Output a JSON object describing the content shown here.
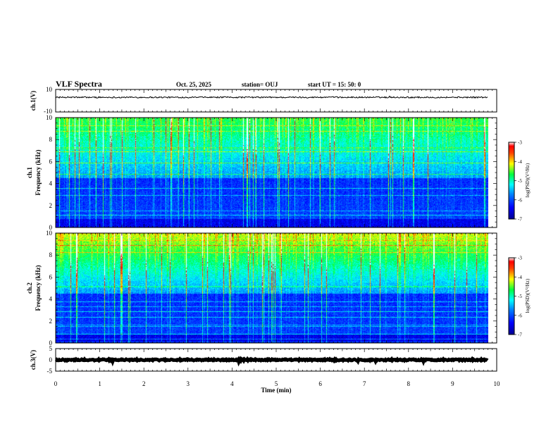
{
  "header": {
    "title": "VLF Spectra",
    "date": "Oct. 25, 2025",
    "station": "station= OUJ",
    "start": "start  UT =   15: 50: 0"
  },
  "chart_data": [
    {
      "type": "line",
      "panel": "ch1-waveform",
      "ylabel": "ch.1(V)",
      "ylim": [
        -10,
        10
      ],
      "yticks": [
        "10",
        "-10"
      ],
      "xlim": [
        0,
        10
      ],
      "x_data_range": [
        0,
        9.8
      ],
      "baseline": 3,
      "noise_amplitude": 0.6,
      "color": "#000000"
    },
    {
      "type": "heatmap",
      "panel": "ch1-spectrogram",
      "ylabel_line1": "ch.1",
      "ylabel_line2": "Frequency (kHz)",
      "ylim": [
        0,
        10
      ],
      "yticks": [
        "0",
        "2",
        "4",
        "6",
        "8",
        "10"
      ],
      "xlim": [
        0,
        10
      ],
      "x_data_range": [
        0,
        9.8
      ],
      "colorbar": {
        "label": "log(PSD)(V²/Hz)",
        "range": [
          -7,
          -3
        ],
        "ticks": [
          "-3",
          "-4",
          "-5",
          "-6",
          "-7"
        ]
      }
    },
    {
      "type": "heatmap",
      "panel": "ch2-spectrogram",
      "ylabel_line1": "ch.2",
      "ylabel_line2": "Frequency (kHz)",
      "ylim": [
        0,
        10
      ],
      "yticks": [
        "0",
        "2",
        "4",
        "6",
        "8",
        "10"
      ],
      "xlim": [
        0,
        10
      ],
      "x_data_range": [
        0,
        9.8
      ],
      "colorbar": {
        "label": "log(PSD)(V²/Hz)",
        "range": [
          -7,
          -3
        ],
        "ticks": [
          "-3",
          "-4",
          "-5",
          "-6",
          "-7"
        ]
      }
    },
    {
      "type": "line",
      "panel": "ch3-waveform",
      "ylabel": "ch.3(V)",
      "ylim": [
        -5,
        5
      ],
      "yticks": [
        "5",
        "0",
        "-5"
      ],
      "xlim": [
        0,
        10
      ],
      "x_data_range": [
        0,
        9.8
      ],
      "baseline": 0,
      "noise_amplitude": 0.3,
      "color": "#000000"
    }
  ],
  "xaxis": {
    "label": "Time (min)",
    "ticks": [
      "0",
      "1",
      "2",
      "3",
      "4",
      "5",
      "6",
      "7",
      "8",
      "9",
      "10"
    ]
  }
}
